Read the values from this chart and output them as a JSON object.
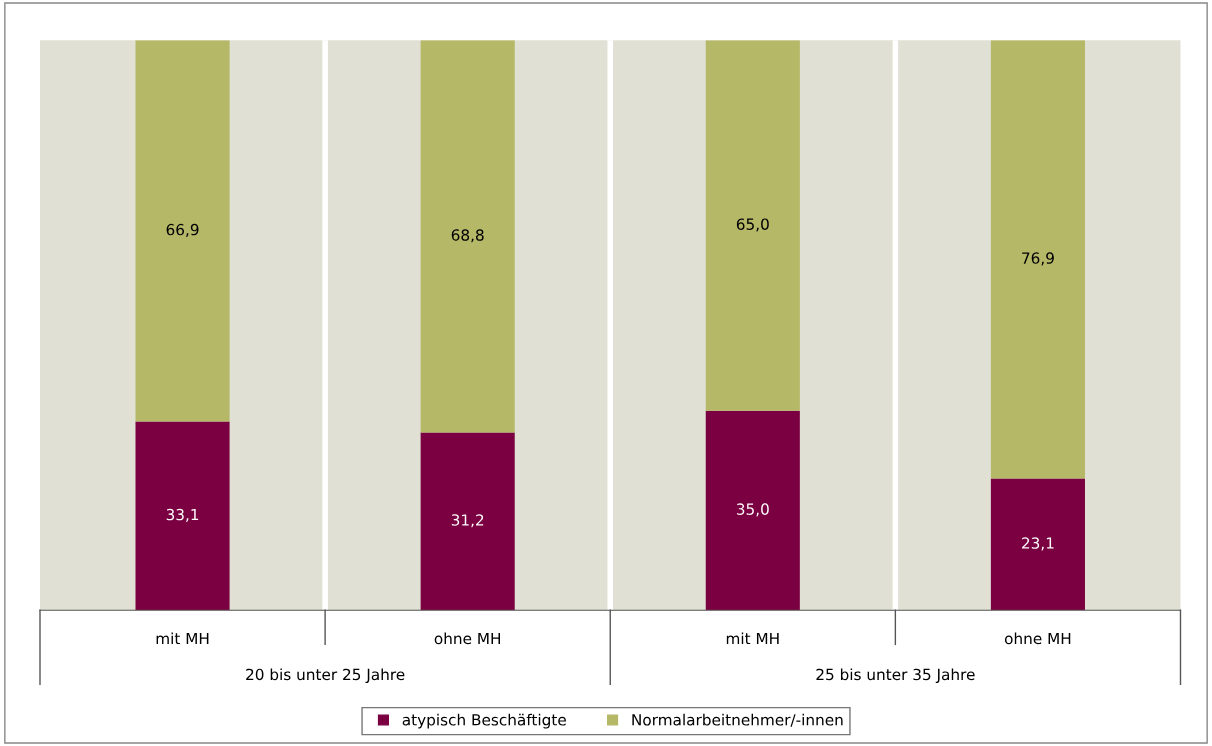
{
  "chart_data": {
    "type": "bar",
    "stacked": true,
    "legend": "bottom",
    "categories": [
      "mit MH",
      "ohne MH",
      "mit MH",
      "ohne MH"
    ],
    "annotations": [
      "20 bis unter 25 Jahre",
      "25 bis unter 35 Jahre"
    ],
    "series": [
      {
        "name": "atypisch Beschäftigte",
        "color": "#7b0041",
        "values": [
          33.1,
          31.2,
          35.0,
          23.1
        ],
        "value_labels": [
          "33,1",
          "31,2",
          "35,0",
          "23,1"
        ]
      },
      {
        "name": "Normalarbeitnehmer/-innen",
        "color": "#b5b867",
        "values": [
          66.9,
          68.8,
          65.0,
          76.9
        ],
        "value_labels": [
          "66,9",
          "68,8",
          "65,0",
          "76,9"
        ]
      }
    ]
  }
}
